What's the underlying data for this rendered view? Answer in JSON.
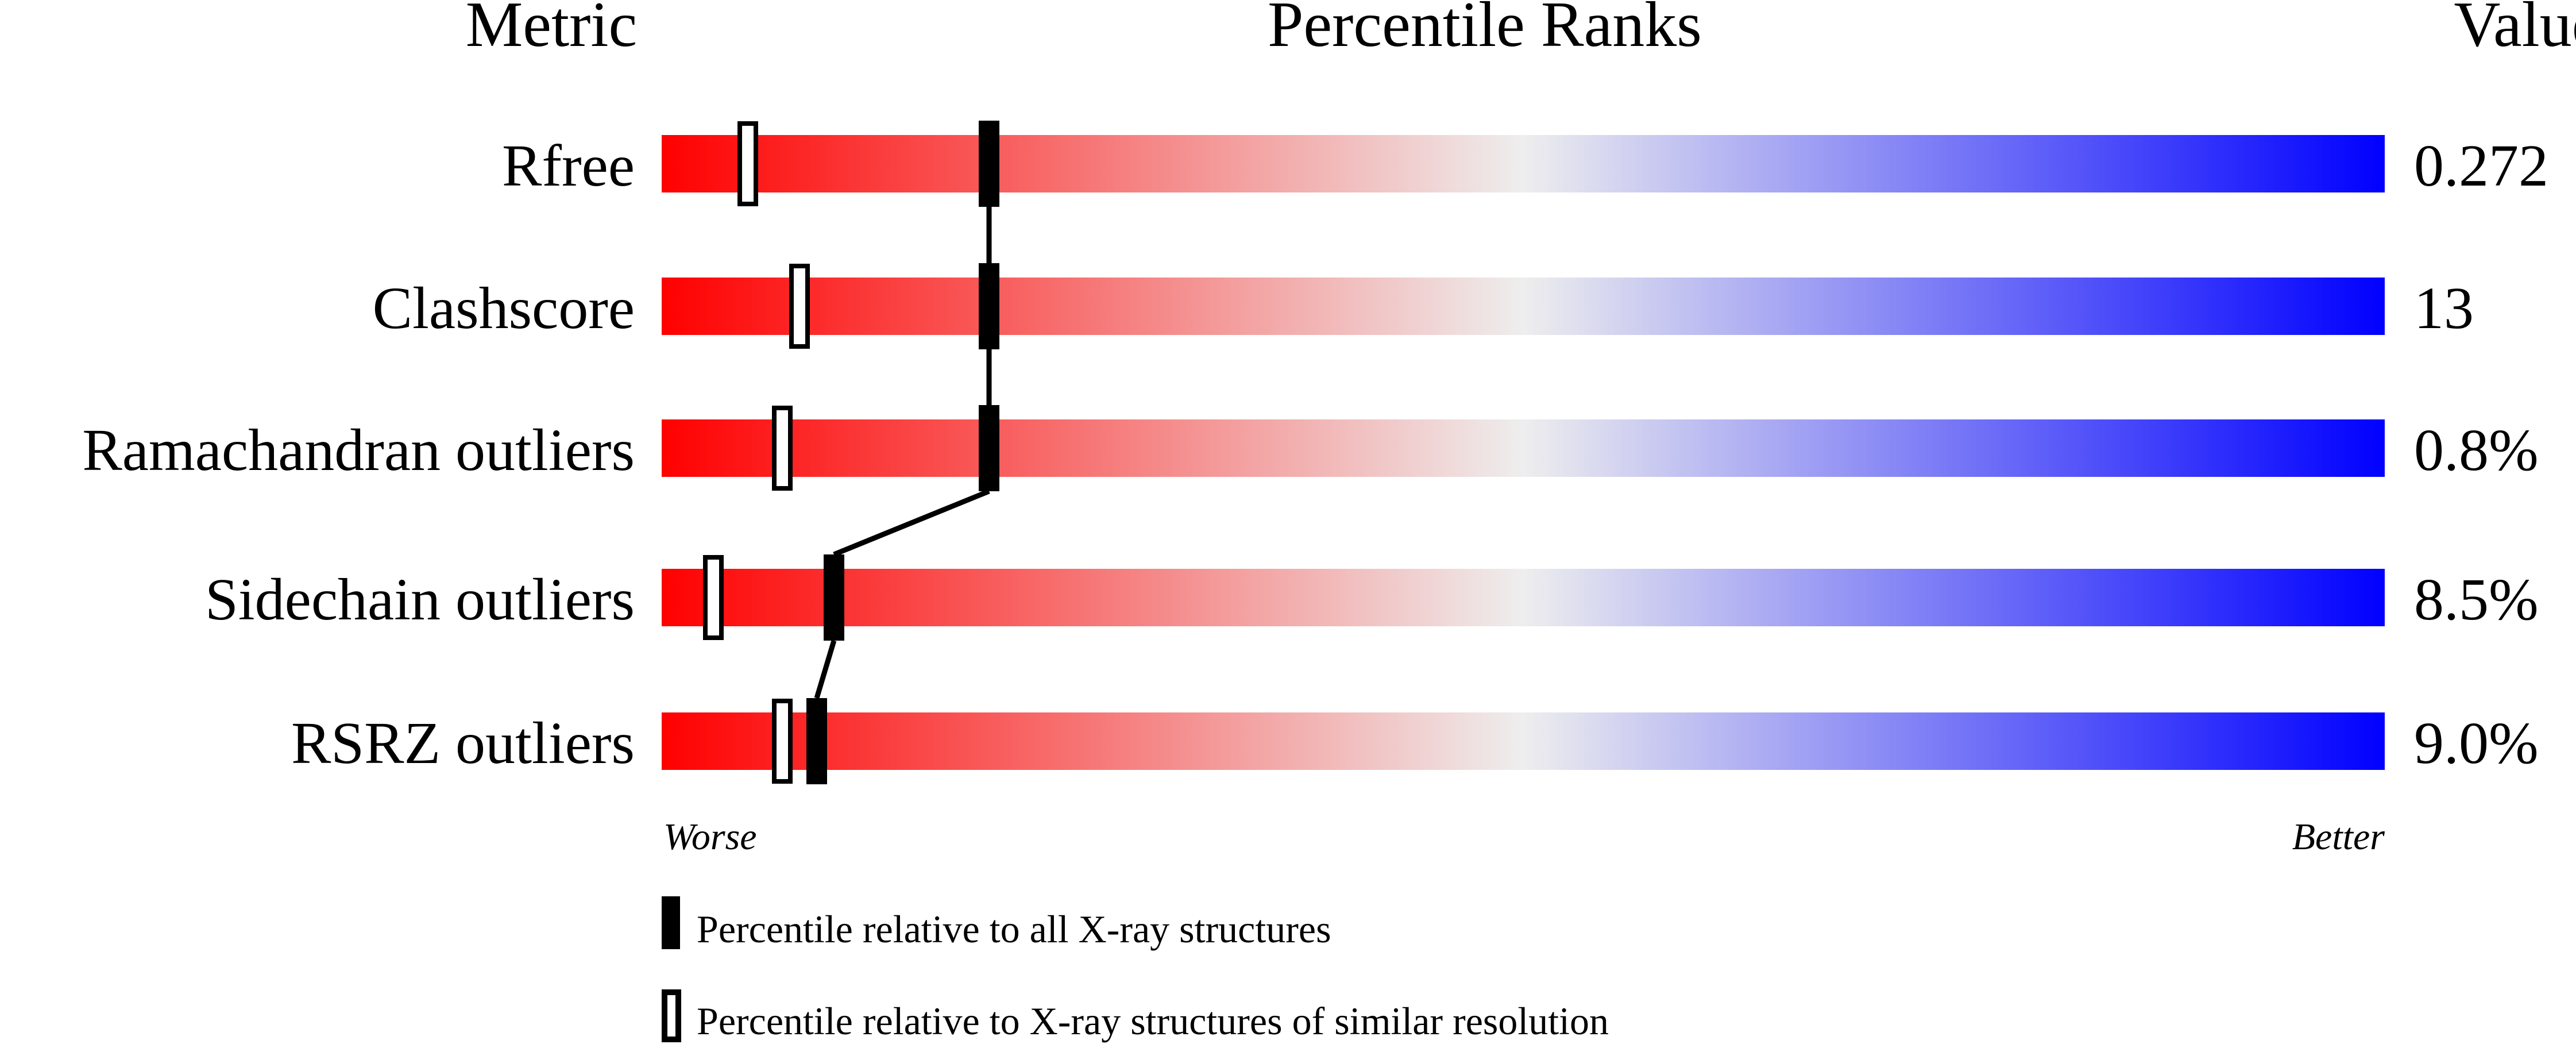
{
  "chart_data": {
    "type": "percentile-bar",
    "headers": {
      "metric": "Metric",
      "percentile": "Percentile Ranks",
      "value": "Value"
    },
    "axis_labels": {
      "left": "Worse",
      "right": "Better"
    },
    "xlim": [
      0,
      100
    ],
    "rows": [
      {
        "metric": "Rfree",
        "value": "0.272",
        "percentile_all": 19,
        "percentile_similar": 5
      },
      {
        "metric": "Clashscore",
        "value": "13",
        "percentile_all": 19,
        "percentile_similar": 8
      },
      {
        "metric": "Ramachandran outliers",
        "value": "0.8%",
        "percentile_all": 19,
        "percentile_similar": 7
      },
      {
        "metric": "Sidechain outliers",
        "value": "8.5%",
        "percentile_all": 10,
        "percentile_similar": 3
      },
      {
        "metric": "RSRZ outliers",
        "value": "9.0%",
        "percentile_all": 9,
        "percentile_similar": 7
      }
    ],
    "legend": [
      {
        "marker": "filled",
        "label": "Percentile relative to all X-ray structures"
      },
      {
        "marker": "open",
        "label": "Percentile relative to X-ray structures of similar resolution"
      }
    ],
    "colors": {
      "worse": "#ff0000",
      "middle": "#eeeeee",
      "better": "#0000ff",
      "marker": "#000000"
    }
  }
}
